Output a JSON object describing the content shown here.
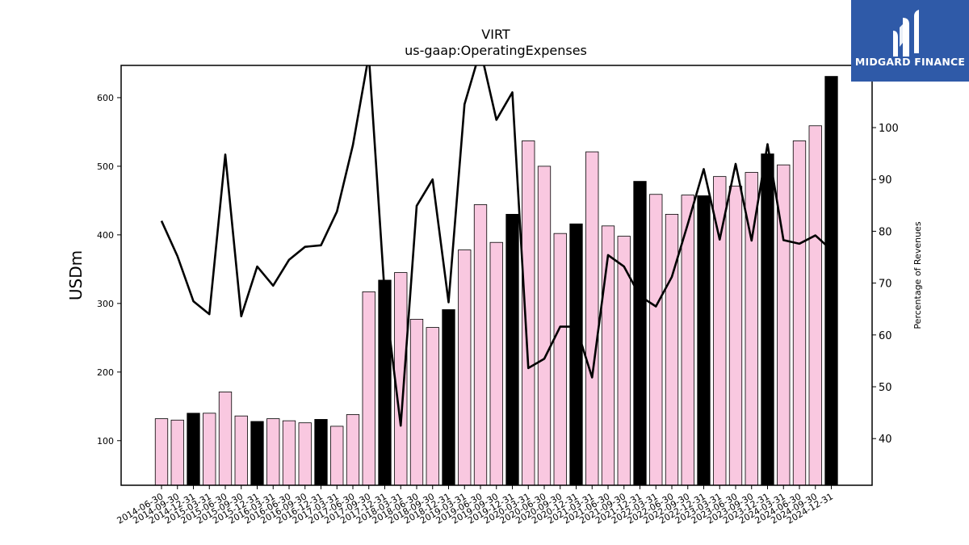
{
  "chart_data": {
    "type": "bar",
    "title": "VIRT",
    "subtitle": "us-gaap:OperatingExpenses",
    "ylabel": "USDm",
    "y2label": "Percentage of Revenues",
    "ylim": [
      35,
      647
    ],
    "y2lim": [
      31,
      112
    ],
    "yticks": [
      100,
      200,
      300,
      400,
      500,
      600
    ],
    "y2ticks": [
      40,
      50,
      60,
      70,
      80,
      90,
      100
    ],
    "grid": false,
    "colors": {
      "bar": "#f9c8e0",
      "bar_highlight": "#000000",
      "line": "#000000"
    },
    "categories": [
      "2014-06-30",
      "2014-09-30",
      "2014-12-31",
      "2015-03-31",
      "2015-06-30",
      "2015-09-30",
      "2015-12-31",
      "2016-03-31",
      "2016-06-30",
      "2016-09-30",
      "2016-12-31",
      "2017-03-31",
      "2017-06-30",
      "2017-09-30",
      "2017-12-31",
      "2018-03-31",
      "2018-06-30",
      "2018-09-30",
      "2018-12-31",
      "2019-03-31",
      "2019-06-30",
      "2019-09-30",
      "2019-12-31",
      "2020-03-31",
      "2020-06-30",
      "2020-09-30",
      "2020-12-31",
      "2021-03-31",
      "2021-06-30",
      "2021-09-30",
      "2021-12-31",
      "2022-03-31",
      "2022-06-30",
      "2022-09-30",
      "2022-12-31",
      "2023-03-31",
      "2023-06-30",
      "2023-09-30",
      "2023-12-31",
      "2024-03-31",
      "2024-06-30",
      "2024-09-30",
      "2024-12-31"
    ],
    "series": [
      {
        "kind": "bar",
        "axis": "left",
        "values": [
          132,
          130,
          140,
          140,
          171,
          136,
          128,
          132,
          129,
          126,
          131,
          121,
          138,
          317,
          334,
          345,
          277,
          265,
          291,
          378,
          444,
          389,
          430,
          537,
          500,
          402,
          416,
          521,
          413,
          398,
          478,
          459,
          430,
          458,
          457,
          485,
          471,
          491,
          518,
          502,
          537,
          559,
          631
        ],
        "highlight": [
          false,
          false,
          true,
          false,
          false,
          false,
          true,
          false,
          false,
          false,
          true,
          false,
          false,
          false,
          true,
          false,
          false,
          false,
          true,
          false,
          false,
          false,
          true,
          false,
          false,
          false,
          true,
          false,
          false,
          false,
          true,
          false,
          false,
          false,
          true,
          false,
          false,
          false,
          true,
          false,
          false,
          false,
          true
        ]
      },
      {
        "kind": "line",
        "axis": "right",
        "values": [
          82,
          75.2,
          66.5,
          64,
          94.8,
          63.6,
          73.2,
          69.5,
          74.5,
          77,
          77.3,
          83.8,
          96.6,
          114,
          67.6,
          42.5,
          84.9,
          90,
          66.3,
          104.5,
          115,
          101.5,
          106.8,
          53.6,
          55.4,
          61.6,
          61.6,
          51.8,
          75.4,
          73.2,
          67.5,
          65.5,
          71.2,
          81.4,
          92,
          78.4,
          93,
          78.2,
          96.8,
          78.3,
          77.6,
          79.2,
          76.4
        ]
      }
    ]
  },
  "logo": {
    "text": "MIDGARD FINANCE",
    "color": "#2f5aa8"
  }
}
